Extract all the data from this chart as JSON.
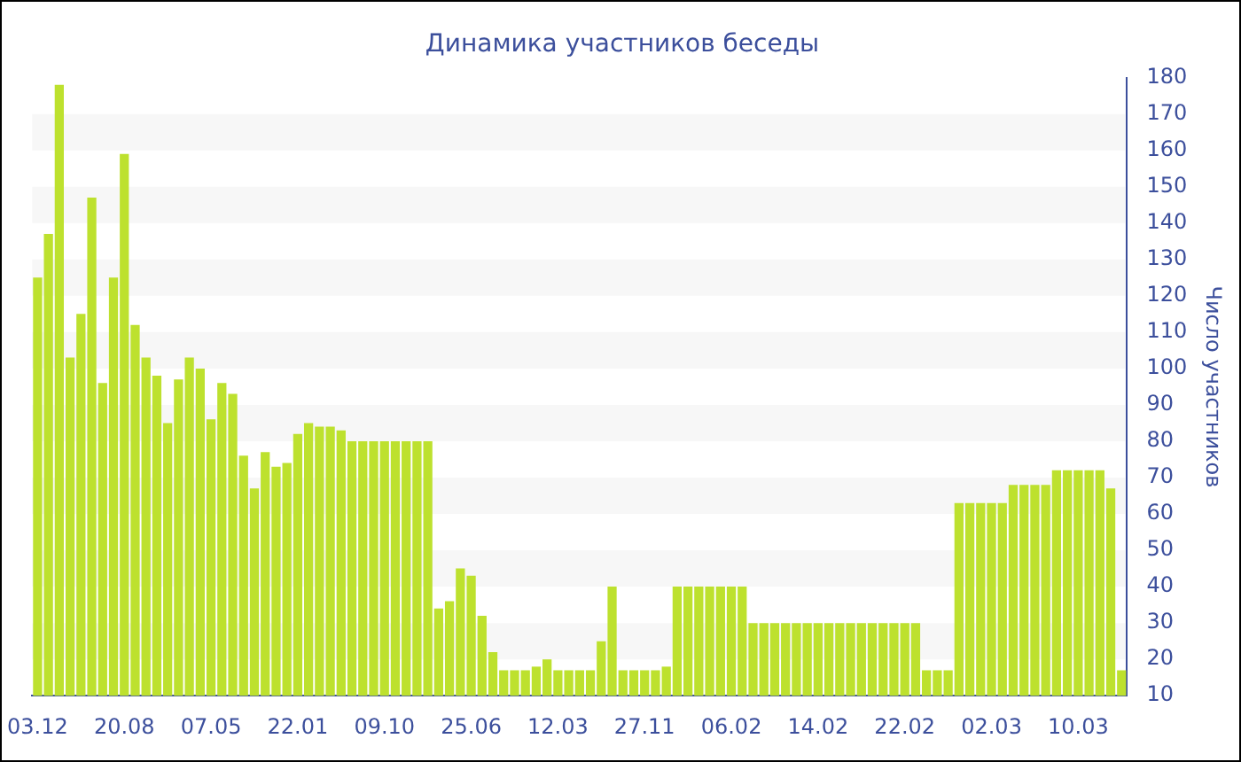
{
  "chart_data": {
    "type": "bar",
    "title": "Динамика участников беседы",
    "ylabel": "Число участников",
    "categories": [
      "03.12",
      null,
      null,
      null,
      null,
      null,
      null,
      null,
      "20.08",
      null,
      null,
      null,
      null,
      null,
      null,
      null,
      "07.05",
      null,
      null,
      null,
      null,
      null,
      null,
      null,
      "22.01",
      null,
      null,
      null,
      null,
      null,
      null,
      null,
      "09.10",
      null,
      null,
      null,
      null,
      null,
      null,
      null,
      "25.06",
      null,
      null,
      null,
      null,
      null,
      null,
      null,
      "12.03",
      null,
      null,
      null,
      null,
      null,
      null,
      null,
      "27.11",
      null,
      null,
      null,
      null,
      null,
      null,
      null,
      "06.02",
      null,
      null,
      null,
      null,
      null,
      null,
      null,
      "14.02",
      null,
      null,
      null,
      null,
      null,
      null,
      null,
      "22.02",
      null,
      null,
      null,
      null,
      null,
      null,
      null,
      "02.03",
      null,
      null,
      null,
      null,
      null,
      null,
      null,
      "10.03",
      null,
      null,
      null,
      null
    ],
    "values": [
      125,
      137,
      178,
      103,
      115,
      147,
      96,
      125,
      159,
      112,
      103,
      98,
      85,
      97,
      103,
      100,
      86,
      96,
      93,
      76,
      67,
      77,
      73,
      74,
      82,
      85,
      84,
      84,
      83,
      80,
      80,
      80,
      80,
      80,
      80,
      80,
      80,
      34,
      36,
      45,
      43,
      32,
      22,
      17,
      17,
      17,
      18,
      20,
      17,
      17,
      17,
      17,
      25,
      40,
      17,
      17,
      17,
      17,
      18,
      40,
      40,
      40,
      40,
      40,
      40,
      40,
      30,
      30,
      30,
      30,
      30,
      30,
      30,
      30,
      30,
      30,
      30,
      30,
      30,
      30,
      30,
      30,
      17,
      17,
      17,
      63,
      63,
      63,
      63,
      63,
      68,
      68,
      68,
      68,
      72,
      72,
      72,
      72,
      72,
      67,
      17
    ],
    "color": "#bde12e",
    "ylim": [
      10,
      180
    ],
    "yticks": [
      10,
      20,
      30,
      40,
      50,
      60,
      70,
      80,
      90,
      100,
      110,
      120,
      130,
      140,
      150,
      160,
      170,
      180
    ],
    "bands": [
      {
        "axis": "y",
        "from": 20,
        "to": 30,
        "color": "#f7f7f7"
      },
      {
        "axis": "y",
        "from": 40,
        "to": 50,
        "color": "#f7f7f7"
      },
      {
        "axis": "y",
        "from": 60,
        "to": 70,
        "color": "#f7f7f7"
      },
      {
        "axis": "y",
        "from": 80,
        "to": 90,
        "color": "#f7f7f7"
      },
      {
        "axis": "y",
        "from": 100,
        "to": 110,
        "color": "#f7f7f7"
      },
      {
        "axis": "y",
        "from": 120,
        "to": 130,
        "color": "#f7f7f7"
      },
      {
        "axis": "y",
        "from": 140,
        "to": 150,
        "color": "#f7f7f7"
      },
      {
        "axis": "y",
        "from": 160,
        "to": 170,
        "color": "#f7f7f7"
      }
    ]
  }
}
